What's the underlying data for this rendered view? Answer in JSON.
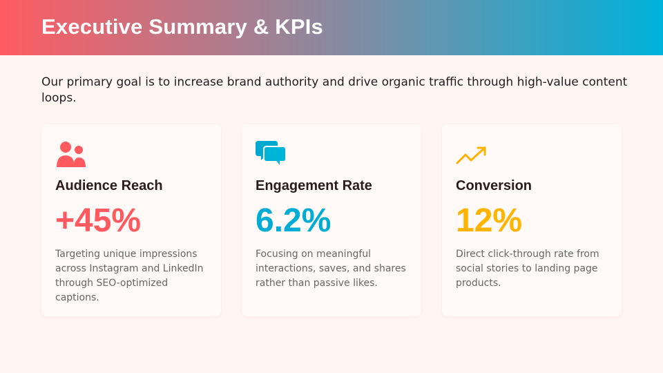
{
  "header": {
    "title": "Executive Summary & KPIs"
  },
  "intro": "Our primary goal is to increase brand authority and drive organic traffic through high-value content loops.",
  "cards": [
    {
      "title": "Audience Reach",
      "value": "+45%",
      "description": "Targeting unique impressions across Instagram and LinkedIn through SEO-optimized captions."
    },
    {
      "title": "Engagement Rate",
      "value": "6.2%",
      "description": "Focusing on meaningful interactions, saves, and shares rather than passive likes."
    },
    {
      "title": "Conversion",
      "value": "12%",
      "description": "Direct click-through rate from social stories to landing page products."
    }
  ]
}
